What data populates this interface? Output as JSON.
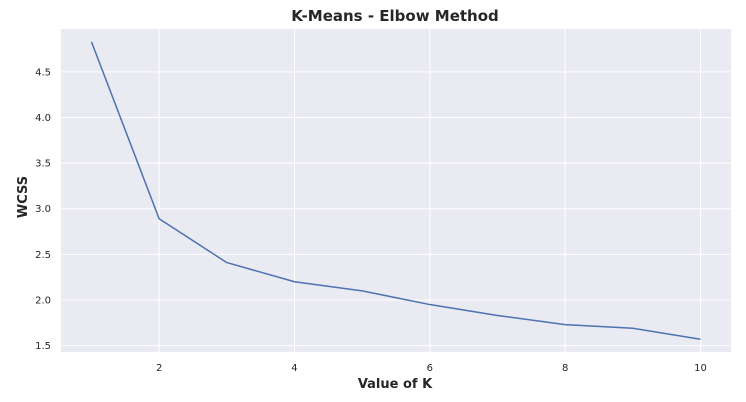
{
  "chart_data": {
    "type": "line",
    "title": "K-Means - Elbow Method",
    "xlabel": "Value of K",
    "ylabel": "WCSS",
    "x": [
      1,
      2,
      3,
      4,
      5,
      6,
      7,
      8,
      9,
      10
    ],
    "series": [
      {
        "values": [
          4.83,
          2.89,
          2.41,
          2.2,
          2.1,
          1.95,
          1.83,
          1.73,
          1.69,
          1.57
        ],
        "color": "#4c72b0"
      }
    ],
    "xticks": [
      "2",
      "4",
      "6",
      "8",
      "10"
    ],
    "yticks": [
      "1.5",
      "2.0",
      "2.5",
      "3.0",
      "3.5",
      "4.0",
      "4.5"
    ],
    "xlim": [
      0.55,
      10.45
    ],
    "ylim": [
      1.43,
      4.97
    ],
    "grid": true,
    "colors": {
      "plot_background": "#eaeaf2",
      "grid": "#ffffff"
    }
  }
}
